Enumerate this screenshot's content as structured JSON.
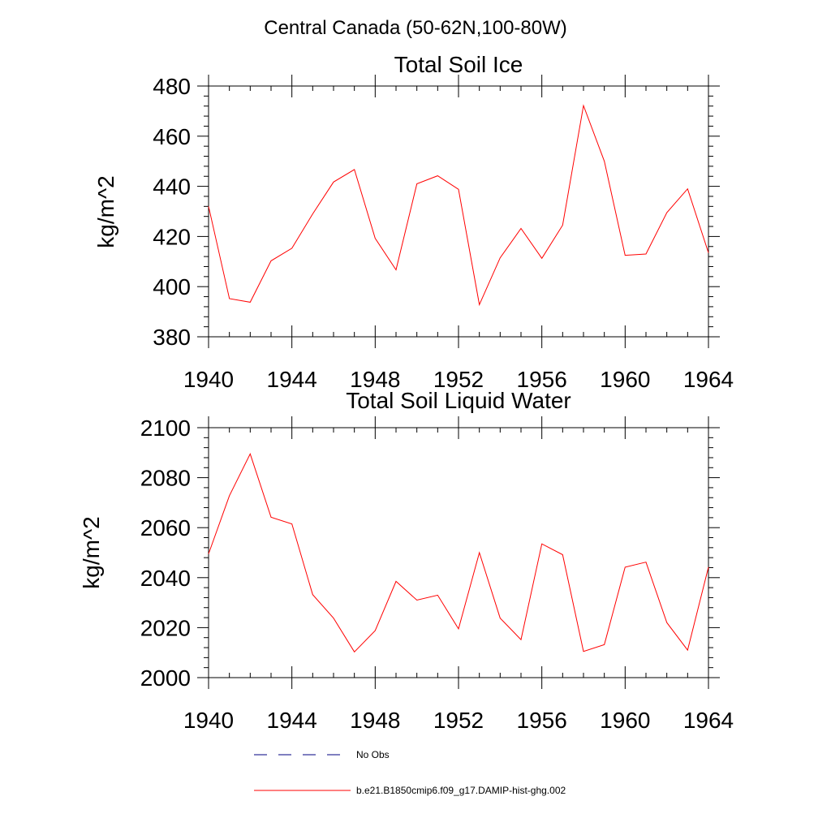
{
  "figure": {
    "suptitle": "Central Canada (50-62N,100-80W)",
    "legend": [
      {
        "label": "No Obs",
        "color": "#000080",
        "style": "dashed"
      },
      {
        "label": "b.e21.B1850cmip6.f09_g17.DAMIP-hist-ghg.002",
        "color": "#ff0000",
        "style": "solid"
      }
    ]
  },
  "chart_data": [
    {
      "type": "line",
      "title": "Total Soil Ice",
      "xlabel": "",
      "ylabel": "kg/m^2",
      "xlim": [
        1940,
        1964
      ],
      "ylim": [
        380,
        480
      ],
      "xticks": [
        1940,
        1944,
        1948,
        1952,
        1956,
        1960,
        1964
      ],
      "yticks": [
        380,
        400,
        420,
        440,
        460,
        480
      ],
      "grid": false,
      "series": [
        {
          "color": "#ff0000",
          "x": [
            1940,
            1941,
            1942,
            1943,
            1944,
            1945,
            1946,
            1947,
            1948,
            1949,
            1950,
            1951,
            1952,
            1953,
            1954,
            1955,
            1956,
            1957,
            1958,
            1959,
            1960,
            1961,
            1962,
            1963,
            1964
          ],
          "values": [
            432,
            395.2,
            393.8,
            410.3,
            415.3,
            429,
            441.7,
            446.7,
            419.3,
            406.7,
            441,
            444.2,
            438.8,
            392.8,
            411.5,
            423.2,
            411.3,
            424.5,
            472.2,
            450,
            412.5,
            413,
            429.5,
            439,
            413.5
          ]
        }
      ]
    },
    {
      "type": "line",
      "title": "Total Soil Liquid Water",
      "xlabel": "",
      "ylabel": "kg/m^2",
      "xlim": [
        1940,
        1964
      ],
      "ylim": [
        2000,
        2100
      ],
      "xticks": [
        1940,
        1944,
        1948,
        1952,
        1956,
        1960,
        1964
      ],
      "yticks": [
        2000,
        2020,
        2040,
        2060,
        2080,
        2100
      ],
      "grid": false,
      "series": [
        {
          "color": "#ff0000",
          "x": [
            1940,
            1941,
            1942,
            1943,
            1944,
            1945,
            1946,
            1947,
            1948,
            1949,
            1950,
            1951,
            1952,
            1953,
            1954,
            1955,
            1956,
            1957,
            1958,
            1959,
            1960,
            1961,
            1962,
            1963,
            1964
          ],
          "values": [
            2049.5,
            2072.8,
            2089.5,
            2064.2,
            2061.5,
            2033.2,
            2023.8,
            2010.3,
            2018.8,
            2038.5,
            2031,
            2033,
            2019.5,
            2050,
            2023.8,
            2015.2,
            2053.5,
            2049.2,
            2010.5,
            2013.2,
            2044.2,
            2046.2,
            2022,
            2011,
            2044.2
          ]
        }
      ]
    }
  ]
}
